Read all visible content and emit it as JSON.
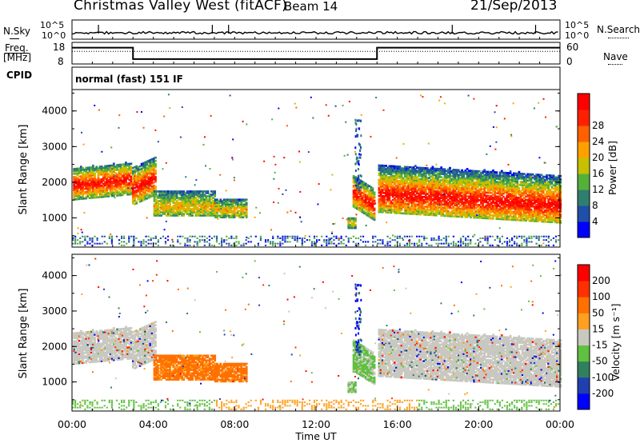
{
  "header": {
    "title": "Christmas Valley West (fitACF)",
    "beam": "Beam 14",
    "date": "21/Sep/2013"
  },
  "noise_panel": {
    "left_label": "N.Sky",
    "right_label": "N.Search",
    "left_ticks": [
      "10^5",
      "10^0"
    ],
    "right_ticks": [
      "10^5",
      "10^0"
    ]
  },
  "freq_panel": {
    "left_label_1": "Freq.",
    "left_label_2": "[MHz]",
    "right_label": "Nave",
    "left_ticks": [
      "18",
      "8"
    ],
    "right_ticks": [
      "60",
      "0"
    ]
  },
  "cpid": {
    "label": "CPID",
    "value": "normal (fast) 151 IF"
  },
  "chart_data": [
    {
      "type": "heatmap",
      "panel": "power",
      "ylabel": "Slant Range [km]",
      "xlabel": "",
      "ylim": [
        180,
        4600
      ],
      "yticks": [
        "1000",
        "2000",
        "3000",
        "4000"
      ],
      "colorbar_label": "Power [dB]",
      "colorbar_ticks": [
        "4",
        "8",
        "12",
        "16",
        "20",
        "24",
        "28"
      ],
      "colors": [
        "#0000ff",
        "#1f4fa8",
        "#2f7f6f",
        "#55b03a",
        "#c7c000",
        "#ffa000",
        "#ff6000",
        "#ff2000",
        "#ff0000"
      ]
    },
    {
      "type": "heatmap",
      "panel": "velocity",
      "ylabel": "Slant Range [km]",
      "xlabel": "Time UT",
      "ylim": [
        180,
        4600
      ],
      "yticks": [
        "1000",
        "2000",
        "3000",
        "4000"
      ],
      "xticks": [
        "00:00",
        "04:00",
        "08:00",
        "12:00",
        "16:00",
        "20:00",
        "00:00"
      ],
      "xlim_hours": [
        0,
        24
      ],
      "colorbar_label": "Velocity [m s⁻¹]",
      "colorbar_ticks": [
        "200",
        "100",
        "50",
        "15",
        "-15",
        "-50",
        "-100",
        "-200"
      ],
      "colors": [
        "#0000ff",
        "#2040b0",
        "#308060",
        "#60c040",
        "#c8c8c0",
        "#ffa020",
        "#ff7000",
        "#ff3000",
        "#ff0000"
      ]
    }
  ]
}
